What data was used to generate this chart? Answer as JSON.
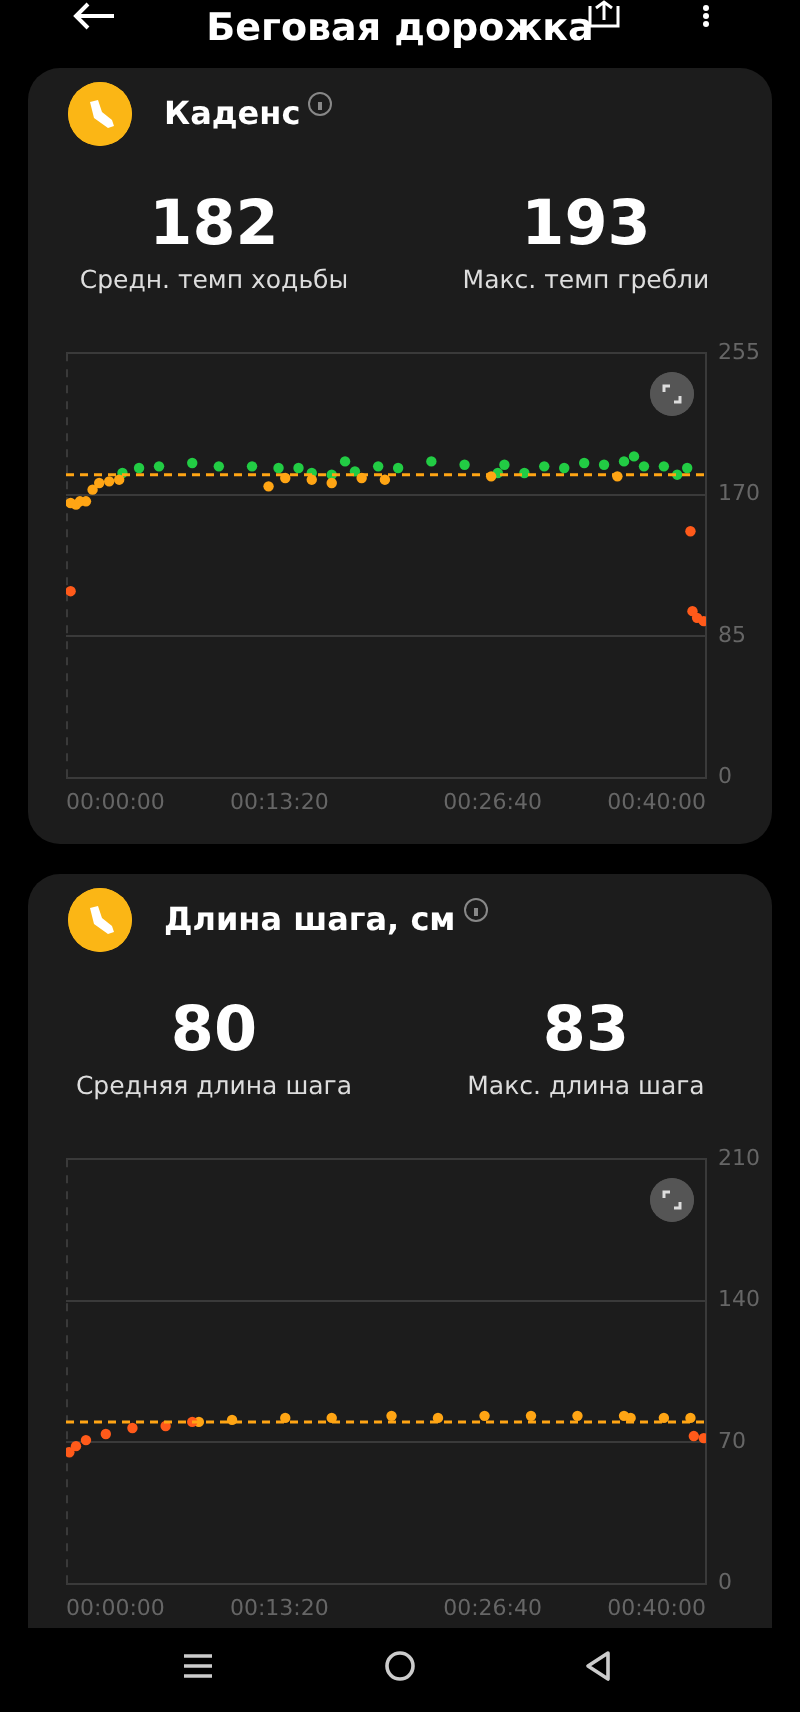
{
  "chart_data": [
    {
      "type": "scatter",
      "title": "Каденс",
      "annotations": [
        "Беговая дорожка",
        "182",
        "Средн. темп ходьбы",
        "193",
        "Макс. темп гребли"
      ],
      "xlim": [
        0,
        0.6667
      ],
      "xticks": [
        {
          "value": 0,
          "label": "00:00:00"
        },
        {
          "value": 0.2222,
          "label": "00:13:20"
        },
        {
          "value": 0.4444,
          "label": "00:26:40"
        },
        {
          "value": 0.6667,
          "label": "00:40:00"
        }
      ],
      "ylim": [
        0,
        255
      ],
      "yticks": [
        0,
        85,
        170,
        255
      ],
      "grid": "y",
      "legend": false,
      "marker": "circle",
      "ref_lines": [
        {
          "axis": "y",
          "value": 182,
          "color": "#ffa514",
          "line_style": "dashed"
        }
      ],
      "series": [
        {
          "color": "#ff5a1a",
          "x": [
            0.0048,
            0.6505,
            0.6526,
            0.6574,
            0.6643
          ],
          "values": [
            112,
            148,
            100,
            96,
            94
          ]
        },
        {
          "color": "#ffa514",
          "x": [
            0.0048,
            0.0104,
            0.0145,
            0.0208,
            0.0277,
            0.0346,
            0.045,
            0.0554,
            0.211,
            0.2284,
            0.256,
            0.2768,
            0.308,
            0.3322,
            0.4429,
            0.5744
          ],
          "values": [
            165,
            164,
            166,
            166,
            173,
            177,
            178,
            179,
            175,
            180,
            179,
            177,
            180,
            179,
            181,
            181
          ]
        },
        {
          "color": "#22cc44",
          "x": [
            0.0588,
            0.0761,
            0.0969,
            0.1315,
            0.1592,
            0.1938,
            0.2214,
            0.2422,
            0.256,
            0.2768,
            0.2907,
            0.301,
            0.3252,
            0.346,
            0.3806,
            0.4152,
            0.4498,
            0.4567,
            0.4775,
            0.4982,
            0.519,
            0.5398,
            0.5605,
            0.5813,
            0.5917,
            0.6021,
            0.6228,
            0.6367,
            0.6471
          ],
          "values": [
            183,
            186,
            187,
            189,
            187,
            187,
            186,
            186,
            183,
            182,
            190,
            184,
            187,
            186,
            190,
            188,
            183,
            188,
            183,
            187,
            186,
            189,
            188,
            190,
            193,
            187,
            187,
            182,
            186
          ]
        }
      ]
    },
    {
      "type": "scatter",
      "title": "Длина шага, см",
      "annotations": [
        "80",
        "Средняя длина шага",
        "83",
        "Макс. длина шага"
      ],
      "xlim": [
        0,
        0.6667
      ],
      "xticks": [
        {
          "value": 0,
          "label": "00:00:00"
        },
        {
          "value": 0.2222,
          "label": "00:13:20"
        },
        {
          "value": 0.4444,
          "label": "00:26:40"
        },
        {
          "value": 0.6667,
          "label": "00:40:00"
        }
      ],
      "ylim": [
        0,
        210
      ],
      "yticks": [
        0,
        70,
        140,
        210
      ],
      "grid": "y",
      "legend": false,
      "marker": "circle",
      "ref_lines": [
        {
          "axis": "y",
          "value": 80,
          "color": "#ffa514",
          "line_style": "dashed"
        }
      ],
      "series": [
        {
          "color": "#ff5a1a",
          "x": [
            0.0035,
            0.0104,
            0.0208,
            0.0415,
            0.0692,
            0.1038,
            0.1315,
            0.654,
            0.6643
          ],
          "values": [
            65,
            68,
            71,
            74,
            77,
            78,
            80,
            73,
            72
          ]
        },
        {
          "color": "#ffa514",
          "x": [
            0.1384,
            0.173,
            0.2284,
            0.2768,
            0.3391,
            0.3875,
            0.436,
            0.4844,
            0.5328,
            0.5813,
            0.5882,
            0.6228,
            0.6505
          ],
          "values": [
            80,
            81,
            82,
            82,
            83,
            82,
            83,
            83,
            83,
            83,
            82,
            82,
            82
          ]
        }
      ]
    }
  ]
}
